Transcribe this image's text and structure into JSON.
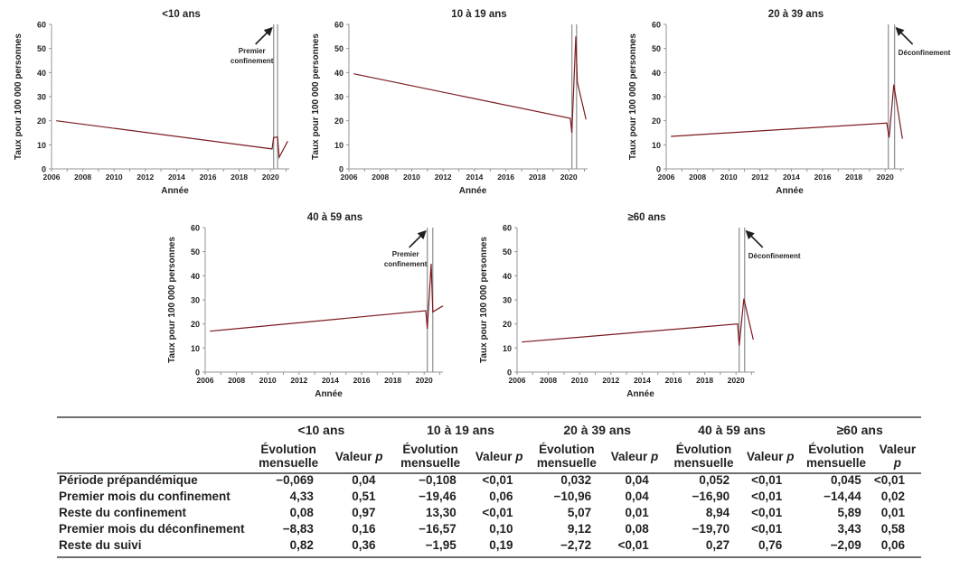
{
  "chart_data": [
    {
      "type": "line",
      "title": "<10 ans",
      "xlabel": "Année",
      "ylabel": "Taux pour 100 000 personnes",
      "xlim": [
        2006,
        2021.2
      ],
      "ylim": [
        0,
        60
      ],
      "xticks": [
        "2006",
        "2008",
        "2010",
        "2012",
        "2014",
        "2016",
        "2018",
        "2020"
      ],
      "yticks": [
        "0",
        "10",
        "20",
        "30",
        "40",
        "50",
        "60"
      ],
      "vlines": [
        2020.2,
        2020.45
      ],
      "annotation": {
        "text": [
          "Premier",
          "confinement"
        ],
        "points_to": "vline-1"
      },
      "series": [
        {
          "name": "Taux",
          "color": "#7b1a1f",
          "x": [
            2006.3,
            2020.1,
            2020.2,
            2020.45,
            2020.55,
            2021.1
          ],
          "y": [
            20,
            8.3,
            13,
            13.2,
            4.8,
            11.5
          ]
        }
      ]
    },
    {
      "type": "line",
      "title": "10 à 19 ans",
      "xlabel": "Année",
      "ylabel": "Taux pour 100 000 personnes",
      "xlim": [
        2006,
        2021.2
      ],
      "ylim": [
        0,
        60
      ],
      "xticks": [
        "2006",
        "2008",
        "2010",
        "2012",
        "2014",
        "2016",
        "2018",
        "2020"
      ],
      "yticks": [
        "0",
        "10",
        "20",
        "30",
        "40",
        "50",
        "60"
      ],
      "vlines": [
        2020.2,
        2020.5
      ],
      "annotation": null,
      "series": [
        {
          "name": "Taux",
          "color": "#7b1a1f",
          "x": [
            2006.3,
            2020.1,
            2020.2,
            2020.45,
            2020.55,
            2021.1
          ],
          "y": [
            39.5,
            21,
            15,
            55,
            36,
            20.5
          ]
        }
      ]
    },
    {
      "type": "line",
      "title": "20 à 39 ans",
      "xlabel": "Année",
      "ylabel": "Taux pour 100 000 personnes",
      "xlim": [
        2006,
        2021.2
      ],
      "ylim": [
        0,
        60
      ],
      "xticks": [
        "2006",
        "2008",
        "2010",
        "2012",
        "2014",
        "2016",
        "2018",
        "2020"
      ],
      "yticks": [
        "0",
        "10",
        "20",
        "30",
        "40",
        "50",
        "60"
      ],
      "vlines": [
        2020.2,
        2020.6
      ],
      "annotation": {
        "text": [
          "Déconfinement"
        ],
        "points_to": "vline-2"
      },
      "series": [
        {
          "name": "Taux",
          "color": "#7b1a1f",
          "x": [
            2006.3,
            2020.1,
            2020.25,
            2020.55,
            2021.1
          ],
          "y": [
            13.5,
            19,
            13,
            35,
            12.5
          ]
        }
      ]
    },
    {
      "type": "line",
      "title": "40 à 59 ans",
      "xlabel": "Année",
      "ylabel": "Taux pour 100 000 personnes",
      "xlim": [
        2006,
        2021.2
      ],
      "ylim": [
        0,
        60
      ],
      "xticks": [
        "2006",
        "2008",
        "2010",
        "2012",
        "2014",
        "2016",
        "2018",
        "2020"
      ],
      "yticks": [
        "0",
        "10",
        "20",
        "30",
        "40",
        "50",
        "60"
      ],
      "vlines": [
        2020.2,
        2020.55
      ],
      "annotation": {
        "text": [
          "Premier",
          "confinement"
        ],
        "points_to": "vline-1"
      },
      "series": [
        {
          "name": "Taux",
          "color": "#7b1a1f",
          "x": [
            2006.3,
            2020.1,
            2020.2,
            2020.45,
            2020.55,
            2021.2
          ],
          "y": [
            17,
            25.5,
            18,
            45,
            25,
            27.5
          ]
        }
      ]
    },
    {
      "type": "line",
      "title": "≥60 ans",
      "xlabel": "Année",
      "ylabel": "Taux pour 100 000 personnes",
      "xlim": [
        2006,
        2021.2
      ],
      "ylim": [
        0,
        60
      ],
      "xticks": [
        "2006",
        "2008",
        "2010",
        "2012",
        "2014",
        "2016",
        "2018",
        "2020"
      ],
      "yticks": [
        "0",
        "10",
        "20",
        "30",
        "40",
        "50",
        "60"
      ],
      "vlines": [
        2020.2,
        2020.55
      ],
      "annotation": {
        "text": [
          "Déconfinement"
        ],
        "points_to": "vline-2"
      },
      "series": [
        {
          "name": "Taux",
          "color": "#7b1a1f",
          "x": [
            2006.3,
            2020.1,
            2020.2,
            2020.5,
            2021.1
          ],
          "y": [
            12.5,
            20,
            11,
            30.5,
            13.5
          ]
        }
      ]
    }
  ],
  "table": {
    "groups": [
      "<10 ans",
      "10 à 19 ans",
      "20 à 39 ans",
      "40 à 59 ans",
      "≥60 ans"
    ],
    "sub_evo": [
      "Évolution",
      "mensuelle"
    ],
    "sub_p": "Valeur ",
    "sub_p_italic": "p",
    "rows": [
      {
        "label": "Période prépandémique",
        "values": [
          "−0,069",
          "0,04",
          "−0,108",
          "<0,01",
          "0,032",
          "0,04",
          "0,052",
          "<0,01",
          "0,045",
          "<0,01"
        ]
      },
      {
        "label": "Premier mois du confinement",
        "values": [
          "4,33",
          "0,51",
          "−19,46",
          "0,06",
          "−10,96",
          "0,04",
          "−16,90",
          "<0,01",
          "−14,44",
          "0,02"
        ]
      },
      {
        "label": "Reste du confinement",
        "values": [
          "0,08",
          "0,97",
          "13,30",
          "<0,01",
          "5,07",
          "0,01",
          "8,94",
          "<0,01",
          "5,89",
          "0,01"
        ]
      },
      {
        "label": "Premier mois du déconfinement",
        "values": [
          "−8,83",
          "0,16",
          "−16,57",
          "0,10",
          "9,12",
          "0,08",
          "−19,70",
          "<0,01",
          "3,43",
          "0,58"
        ]
      },
      {
        "label": "Reste du suivi",
        "values": [
          "0,82",
          "0,36",
          "−1,95",
          "0,19",
          "−2,72",
          "<0,01",
          "0,27",
          "0,76",
          "−2,09",
          "0,06"
        ]
      }
    ]
  }
}
